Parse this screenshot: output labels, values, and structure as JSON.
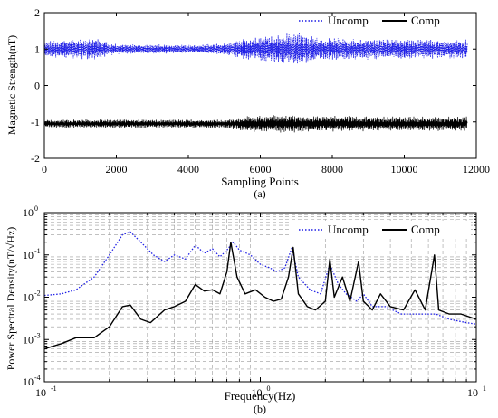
{
  "chart_data": [
    {
      "type": "line",
      "caption": "(a)",
      "xlabel": "Sampling Points",
      "ylabel": "Magnetic Strength(nT)",
      "xlim": [
        0,
        12000
      ],
      "ylim": [
        -2,
        2
      ],
      "xticks": [
        "0",
        "2000",
        "4000",
        "6000",
        "8000",
        "10000",
        "12000"
      ],
      "yticks": [
        "-2",
        "-1",
        "0",
        "1",
        "2"
      ],
      "grid": false,
      "legend_position": "top-right",
      "series": [
        {
          "name": "Uncomp",
          "color": "#1f1fe6",
          "style": "dotted",
          "x_range": [
            0,
            11750
          ],
          "mean": 1.0,
          "amplitude_envelope": [
            [
              0,
              0.22
            ],
            [
              1000,
              0.28
            ],
            [
              1400,
              0.3
            ],
            [
              2000,
              0.14
            ],
            [
              4000,
              0.12
            ],
            [
              5000,
              0.16
            ],
            [
              5600,
              0.3
            ],
            [
              6500,
              0.42
            ],
            [
              7000,
              0.48
            ],
            [
              7600,
              0.32
            ],
            [
              8500,
              0.3
            ],
            [
              10000,
              0.28
            ],
            [
              11750,
              0.26
            ]
          ]
        },
        {
          "name": "Comp",
          "color": "#000000",
          "style": "solid",
          "x_range": [
            0,
            11750
          ],
          "mean": -1.05,
          "amplitude_envelope": [
            [
              0,
              0.12
            ],
            [
              5000,
              0.12
            ],
            [
              5600,
              0.22
            ],
            [
              6500,
              0.26
            ],
            [
              8000,
              0.22
            ],
            [
              10000,
              0.2
            ],
            [
              11750,
              0.2
            ]
          ]
        }
      ]
    },
    {
      "type": "line",
      "caption": "(b)",
      "xlabel": "Frequency(Hz)",
      "ylabel": "Power Spectral Density(nT/√Hz)",
      "xscale": "log",
      "yscale": "log",
      "xlim": [
        0.1,
        10
      ],
      "ylim": [
        0.0001,
        1
      ],
      "xticks": [
        {
          "base": "10",
          "exp": "-1"
        },
        {
          "base": "10",
          "exp": "0"
        },
        {
          "base": "10",
          "exp": "1"
        }
      ],
      "yticks": [
        {
          "base": "10",
          "exp": "-4"
        },
        {
          "base": "10",
          "exp": "-3"
        },
        {
          "base": "10",
          "exp": "-2"
        },
        {
          "base": "10",
          "exp": "-1"
        },
        {
          "base": "10",
          "exp": "0"
        }
      ],
      "grid": true,
      "legend_position": "top-right",
      "series": [
        {
          "name": "Uncomp",
          "color": "#1f1fe6",
          "style": "dotted",
          "points": [
            [
              0.1,
              0.011
            ],
            [
              0.12,
              0.012
            ],
            [
              0.14,
              0.015
            ],
            [
              0.17,
              0.03
            ],
            [
              0.2,
              0.1
            ],
            [
              0.23,
              0.3
            ],
            [
              0.25,
              0.35
            ],
            [
              0.28,
              0.2
            ],
            [
              0.32,
              0.1
            ],
            [
              0.36,
              0.07
            ],
            [
              0.4,
              0.1
            ],
            [
              0.45,
              0.08
            ],
            [
              0.5,
              0.17
            ],
            [
              0.55,
              0.11
            ],
            [
              0.6,
              0.14
            ],
            [
              0.65,
              0.09
            ],
            [
              0.7,
              0.13
            ],
            [
              0.75,
              0.2
            ],
            [
              0.8,
              0.13
            ],
            [
              0.9,
              0.1
            ],
            [
              1.0,
              0.06
            ],
            [
              1.1,
              0.05
            ],
            [
              1.2,
              0.04
            ],
            [
              1.3,
              0.05
            ],
            [
              1.4,
              0.15
            ],
            [
              1.5,
              0.03
            ],
            [
              1.7,
              0.015
            ],
            [
              1.9,
              0.012
            ],
            [
              2.1,
              0.06
            ],
            [
              2.3,
              0.02
            ],
            [
              2.5,
              0.012
            ],
            [
              2.8,
              0.008
            ],
            [
              3.0,
              0.012
            ],
            [
              3.3,
              0.006
            ],
            [
              3.8,
              0.006
            ],
            [
              4.5,
              0.004
            ],
            [
              5.5,
              0.004
            ],
            [
              6.5,
              0.004
            ],
            [
              7.5,
              0.003
            ],
            [
              9.0,
              0.0025
            ],
            [
              10.0,
              0.0023
            ]
          ]
        },
        {
          "name": "Comp",
          "color": "#000000",
          "style": "solid",
          "points": [
            [
              0.1,
              0.0006
            ],
            [
              0.12,
              0.0008
            ],
            [
              0.14,
              0.0011
            ],
            [
              0.17,
              0.0011
            ],
            [
              0.2,
              0.002
            ],
            [
              0.23,
              0.006
            ],
            [
              0.25,
              0.0065
            ],
            [
              0.28,
              0.003
            ],
            [
              0.31,
              0.0025
            ],
            [
              0.36,
              0.005
            ],
            [
              0.4,
              0.006
            ],
            [
              0.45,
              0.008
            ],
            [
              0.5,
              0.02
            ],
            [
              0.55,
              0.014
            ],
            [
              0.6,
              0.015
            ],
            [
              0.65,
              0.012
            ],
            [
              0.7,
              0.04
            ],
            [
              0.73,
              0.2
            ],
            [
              0.78,
              0.03
            ],
            [
              0.85,
              0.012
            ],
            [
              0.95,
              0.015
            ],
            [
              1.05,
              0.01
            ],
            [
              1.15,
              0.008
            ],
            [
              1.25,
              0.009
            ],
            [
              1.35,
              0.03
            ],
            [
              1.42,
              0.15
            ],
            [
              1.5,
              0.012
            ],
            [
              1.65,
              0.006
            ],
            [
              1.8,
              0.005
            ],
            [
              2.0,
              0.008
            ],
            [
              2.1,
              0.08
            ],
            [
              2.2,
              0.01
            ],
            [
              2.4,
              0.03
            ],
            [
              2.6,
              0.008
            ],
            [
              2.85,
              0.07
            ],
            [
              3.0,
              0.008
            ],
            [
              3.3,
              0.005
            ],
            [
              3.6,
              0.012
            ],
            [
              4.0,
              0.006
            ],
            [
              4.6,
              0.005
            ],
            [
              5.2,
              0.015
            ],
            [
              5.8,
              0.005
            ],
            [
              6.4,
              0.1
            ],
            [
              6.7,
              0.005
            ],
            [
              7.5,
              0.004
            ],
            [
              8.5,
              0.004
            ],
            [
              10.0,
              0.003
            ]
          ]
        }
      ]
    }
  ]
}
